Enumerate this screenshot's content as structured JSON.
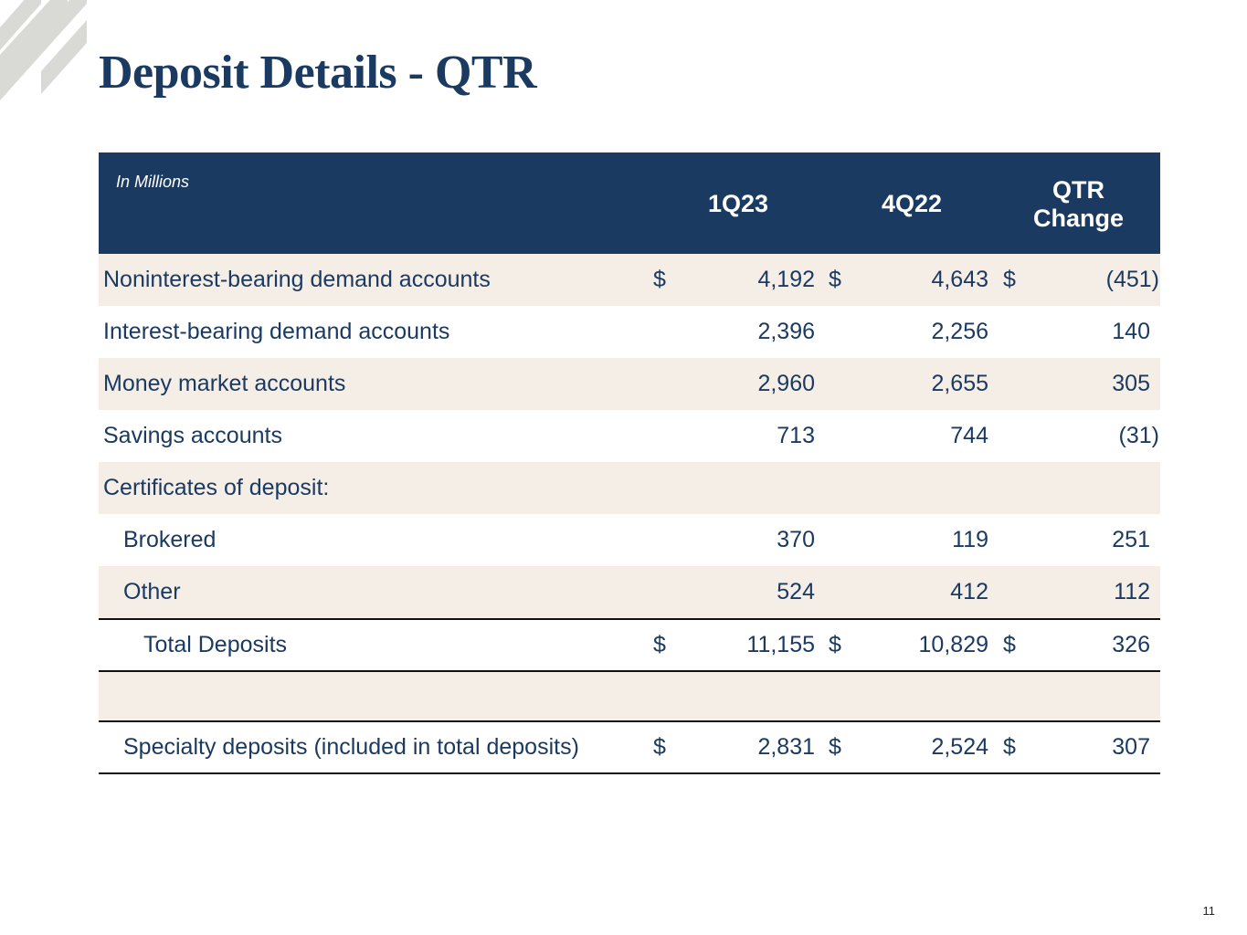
{
  "page": {
    "title": "Deposit Details - QTR",
    "page_number": "11"
  },
  "table": {
    "units_label": "In Millions",
    "columns": {
      "c1": "1Q23",
      "c2": "4Q22",
      "c3_line1": "QTR",
      "c3_line2": "Change"
    },
    "rows": [
      {
        "label": "Noninterest-bearing demand accounts",
        "d1": "$",
        "v1": "4,192",
        "d2": "$",
        "v2": "4,643",
        "d3": "$",
        "v3": "(451)"
      },
      {
        "label": "Interest-bearing demand accounts",
        "d1": "",
        "v1": "2,396",
        "d2": "",
        "v2": "2,256",
        "d3": "",
        "v3": "140"
      },
      {
        "label": "Money market accounts",
        "d1": "",
        "v1": "2,960",
        "d2": "",
        "v2": "2,655",
        "d3": "",
        "v3": "305"
      },
      {
        "label": "Savings accounts",
        "d1": "",
        "v1": "713",
        "d2": "",
        "v2": "744",
        "d3": "",
        "v3": "(31)"
      },
      {
        "label": "Certificates of deposit:",
        "d1": "",
        "v1": "",
        "d2": "",
        "v2": "",
        "d3": "",
        "v3": ""
      },
      {
        "label": "Brokered",
        "d1": "",
        "v1": "370",
        "d2": "",
        "v2": "119",
        "d3": "",
        "v3": "251"
      },
      {
        "label": "Other",
        "d1": "",
        "v1": "524",
        "d2": "",
        "v2": "412",
        "d3": "",
        "v3": "112"
      },
      {
        "label": "Total Deposits",
        "d1": "$",
        "v1": "11,155",
        "d2": "$",
        "v2": "10,829",
        "d3": "$",
        "v3": "326"
      },
      {
        "label": "",
        "d1": "",
        "v1": "",
        "d2": "",
        "v2": "",
        "d3": "",
        "v3": ""
      },
      {
        "label": "Specialty deposits (included in total deposits)",
        "d1": "$",
        "v1": "2,831",
        "d2": "$",
        "v2": "2,524",
        "d3": "$",
        "v3": "307"
      }
    ]
  },
  "colors": {
    "navy": "#1b3a62",
    "row_shade": "#f5eee6",
    "logo_gray": "#d9d9d6"
  },
  "icons": {
    "logo": "diagonal-stripes-logo-icon"
  }
}
